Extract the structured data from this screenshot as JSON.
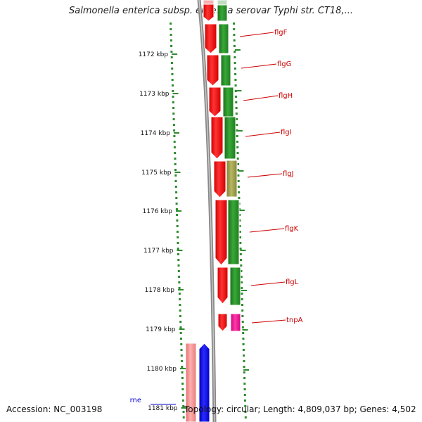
{
  "title": "Salmonella enterica subsp. enterica serovar Typhi str. CT18,...",
  "footer": {
    "accession": "Accession: NC_003198",
    "topology": "Topology: circular; Length: 4,809,037 bp; Genes: 4,502"
  },
  "ruler": {
    "unit": "kbp",
    "ticks": [
      {
        "label": "1172 kbp"
      },
      {
        "label": "1173 kbp"
      },
      {
        "label": "1174 kbp"
      },
      {
        "label": "1175 kbp"
      },
      {
        "label": "1176 kbp"
      },
      {
        "label": "1177 kbp"
      },
      {
        "label": "1178 kbp"
      },
      {
        "label": "1179 kbp"
      },
      {
        "label": "1180 kbp"
      },
      {
        "label": "1181 kbp"
      }
    ]
  },
  "genes": [
    {
      "name": "flgF",
      "color": "#cc0000"
    },
    {
      "name": "flgG",
      "color": "#cc0000"
    },
    {
      "name": "flgH",
      "color": "#cc0000"
    },
    {
      "name": "flgI",
      "color": "#cc0000"
    },
    {
      "name": "flgJ",
      "color": "#cc0000"
    },
    {
      "name": "flgK",
      "color": "#cc0000"
    },
    {
      "name": "flgL",
      "color": "#cc0000"
    },
    {
      "name": "tnpA",
      "color": "#cc0000"
    },
    {
      "name": "rne",
      "color": "#0000cc"
    }
  ],
  "tracks": {
    "forward_cds": "#ff0000",
    "protein_domain": "#1e8a1e",
    "protein_domain_partial": "#9a9a3a",
    "transposase": "#ff1493",
    "reverse_cds": "#0000ee",
    "reverse_rna": "#f08080"
  }
}
